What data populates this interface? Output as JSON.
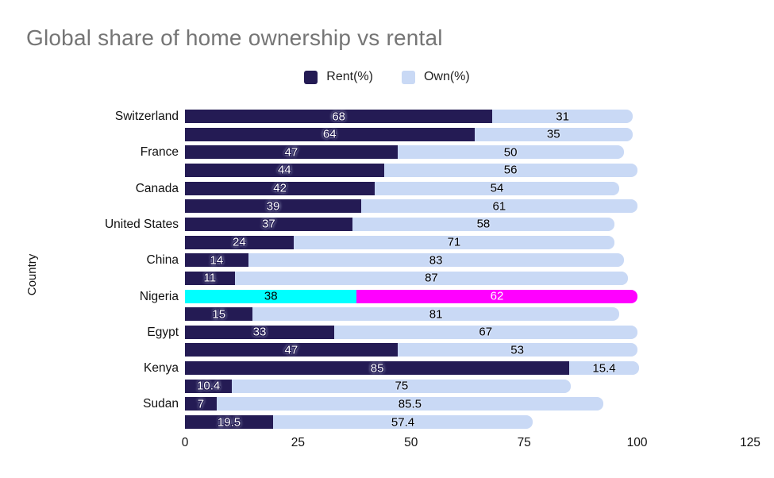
{
  "title": "Global share of home ownership vs rental",
  "legend": [
    {
      "label": "Rent(%)",
      "color": "#241b54"
    },
    {
      "label": "Own(%)",
      "color": "#c9d9f5"
    }
  ],
  "colors": {
    "rent": "#241b54",
    "own": "#c9d9f5",
    "highlight_rent": "#00ffff",
    "highlight_own": "#ff00ff",
    "title_text": "#757575",
    "axis_text": "#111111"
  },
  "chart_data": {
    "type": "bar",
    "orientation": "horizontal",
    "stacked": true,
    "title": "Global share of home ownership vs rental",
    "xlabel": "",
    "ylabel": "Country",
    "xlim": [
      0,
      125
    ],
    "xticks": [
      0,
      25,
      50,
      75,
      100,
      125
    ],
    "grid": false,
    "legend_position": "top-center",
    "series_names": [
      "Rent(%)",
      "Own(%)"
    ],
    "note": "Each country has two stacked bars; axis label is shown on the first bar of each pair. Nigeria's first bar is highlighted cyan/magenta.",
    "rows": [
      {
        "country": "Switzerland",
        "rent": 68,
        "own": 31,
        "highlight": false
      },
      {
        "country": "",
        "rent": 64,
        "own": 35,
        "highlight": false
      },
      {
        "country": "France",
        "rent": 47,
        "own": 50,
        "highlight": false
      },
      {
        "country": "",
        "rent": 44,
        "own": 56,
        "highlight": false
      },
      {
        "country": "Canada",
        "rent": 42,
        "own": 54,
        "highlight": false
      },
      {
        "country": "",
        "rent": 39,
        "own": 61,
        "highlight": false
      },
      {
        "country": "United States",
        "rent": 37,
        "own": 58,
        "highlight": false
      },
      {
        "country": "",
        "rent": 24,
        "own": 71,
        "highlight": false
      },
      {
        "country": "China",
        "rent": 14,
        "own": 83,
        "highlight": false
      },
      {
        "country": "",
        "rent": 11,
        "own": 87,
        "highlight": false
      },
      {
        "country": "Nigeria",
        "rent": 38,
        "own": 62,
        "highlight": true
      },
      {
        "country": "",
        "rent": 15,
        "own": 81,
        "highlight": false
      },
      {
        "country": "Egypt",
        "rent": 33,
        "own": 67,
        "highlight": false
      },
      {
        "country": "",
        "rent": 47,
        "own": 53,
        "highlight": false
      },
      {
        "country": "Kenya",
        "rent": 85,
        "own": 15.4,
        "highlight": false
      },
      {
        "country": "",
        "rent": 10.4,
        "own": 75,
        "highlight": false
      },
      {
        "country": "Sudan",
        "rent": 7,
        "own": 85.5,
        "highlight": false
      },
      {
        "country": "",
        "rent": 19.5,
        "own": 57.4,
        "highlight": false
      }
    ]
  }
}
